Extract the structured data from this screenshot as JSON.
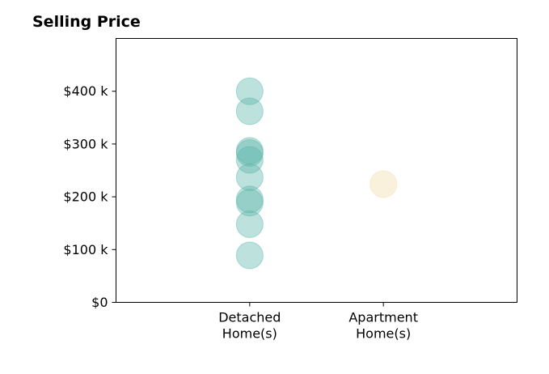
{
  "chart_data": {
    "type": "scatter",
    "title": "Selling Price",
    "xlabel": "",
    "ylabel": "",
    "categories": [
      [
        "Detached",
        "Home(s)"
      ],
      [
        "Apartment",
        "Home(s)"
      ]
    ],
    "y_ticks": [
      {
        "value": 0,
        "label": "$0"
      },
      {
        "value": 100000,
        "label": "$100 k"
      },
      {
        "value": 200000,
        "label": "$200 k"
      },
      {
        "value": 300000,
        "label": "$300 k"
      },
      {
        "value": 400000,
        "label": "$400 k"
      }
    ],
    "ylim": [
      0,
      500000
    ],
    "xlim": [
      -1,
      2
    ],
    "grid": false,
    "series": [
      {
        "category_index": 0,
        "color": "#5bb5aa",
        "values": [
          400000,
          362000,
          287000,
          283000,
          270000,
          237000,
          195000,
          189000,
          148000,
          89000
        ]
      },
      {
        "category_index": 1,
        "color": "#f2dca8",
        "values": [
          224000
        ]
      }
    ]
  }
}
